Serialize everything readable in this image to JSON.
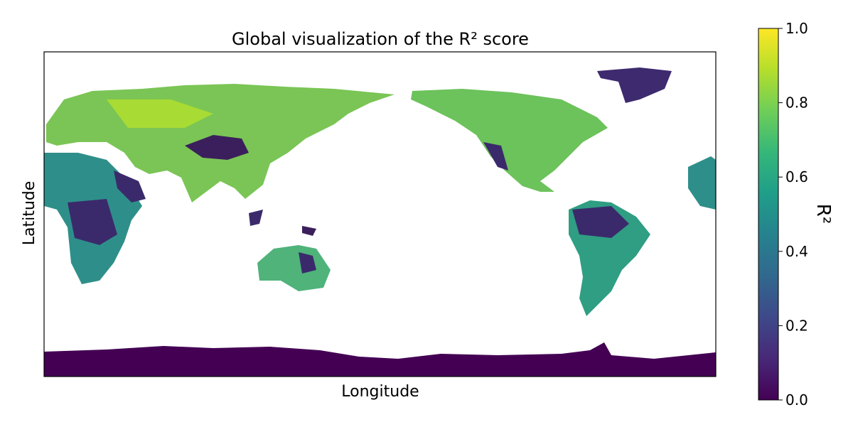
{
  "chart_data": {
    "type": "heatmap",
    "title": "Global visualization of the R² score",
    "x_label": "Longitude",
    "y_label": "Latitude",
    "colorbar": {
      "label": "R²",
      "colormap": "viridis",
      "lim": [
        0,
        1
      ],
      "ticks": [
        {
          "value": 0,
          "label": "0.0"
        },
        {
          "value": 0.2,
          "label": "0.2"
        },
        {
          "value": 0.4,
          "label": "0.4"
        },
        {
          "value": 0.6,
          "label": "0.6"
        },
        {
          "value": 0.8,
          "label": "0.8"
        },
        {
          "value": 1,
          "label": "1.0"
        }
      ]
    }
  }
}
